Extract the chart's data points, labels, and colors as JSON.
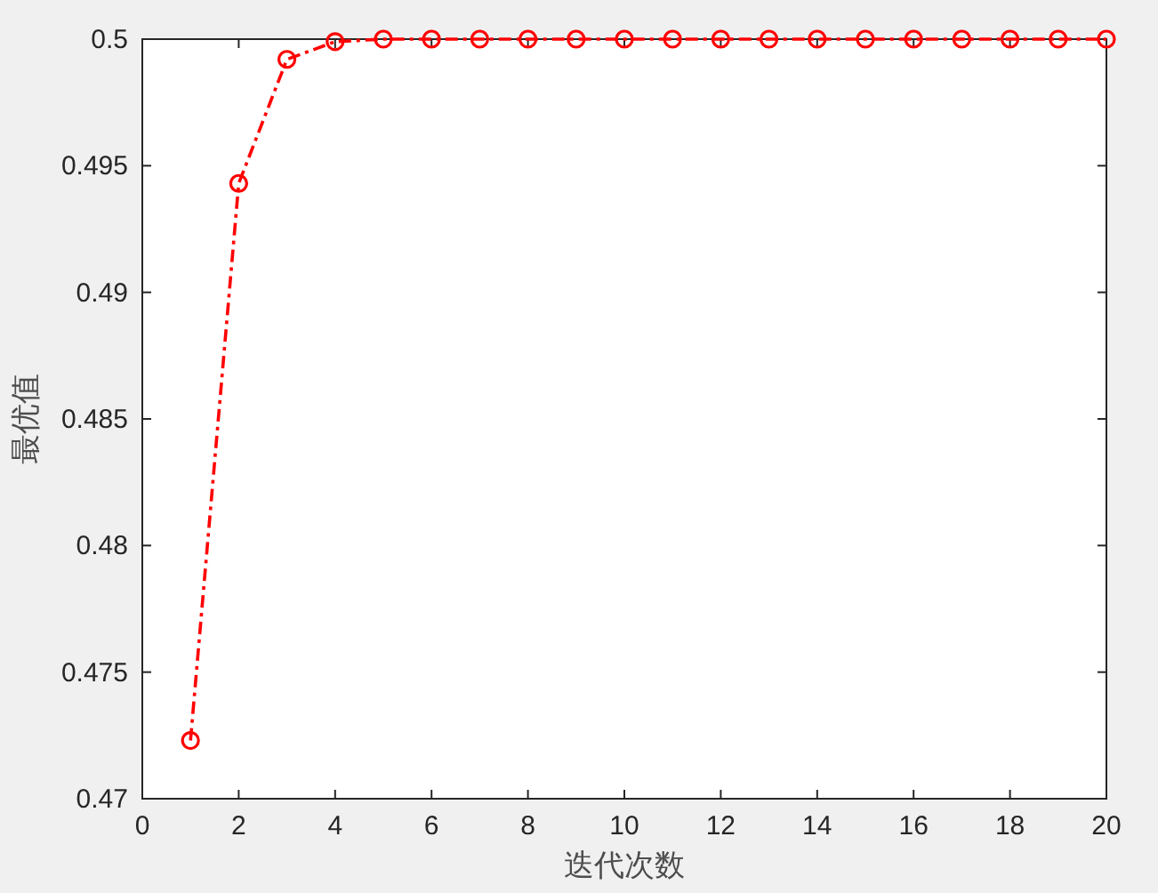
{
  "chart_data": {
    "type": "line",
    "xlabel": "迭代次数",
    "ylabel": "最优值",
    "x": [
      1,
      2,
      3,
      4,
      5,
      6,
      7,
      8,
      9,
      10,
      11,
      12,
      13,
      14,
      15,
      16,
      17,
      18,
      19,
      20
    ],
    "series": [
      {
        "color": "#ff0000",
        "values": [
          0.4723,
          0.4943,
          0.4992,
          0.4999,
          0.5,
          0.5,
          0.5,
          0.5,
          0.5,
          0.5,
          0.5,
          0.5,
          0.5,
          0.5,
          0.5,
          0.5,
          0.5,
          0.5,
          0.5,
          0.5
        ]
      }
    ],
    "xlim": [
      0,
      20
    ],
    "xticks": [
      0,
      2,
      4,
      6,
      8,
      10,
      12,
      14,
      16,
      18,
      20
    ],
    "ylim": [
      0.47,
      0.5
    ],
    "yticks": [
      0.47,
      0.475,
      0.48,
      0.485,
      0.49,
      0.495,
      0.5
    ],
    "grid": false,
    "marker": "circle",
    "line_style": "dashed"
  }
}
